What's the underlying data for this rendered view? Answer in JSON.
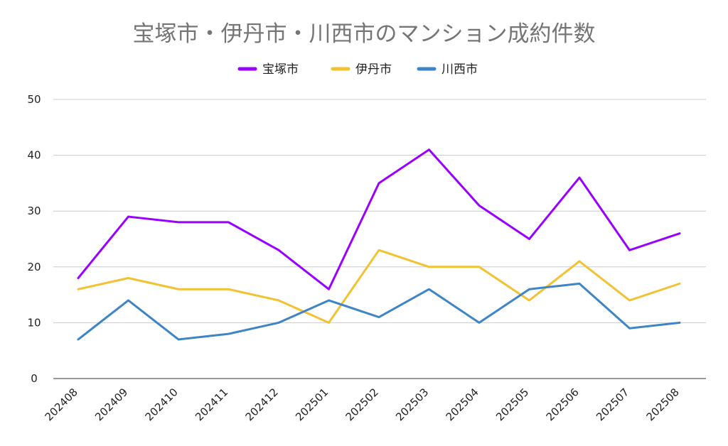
{
  "chart_data": {
    "type": "line",
    "title": "宝塚市・伊丹市・川西市のマンション成約件数",
    "xlabel": "",
    "ylabel": "",
    "categories": [
      "202408",
      "202409",
      "202410",
      "202411",
      "202412",
      "202501",
      "202502",
      "202503",
      "202504",
      "202505",
      "202506",
      "202507",
      "202508"
    ],
    "ylim": [
      0,
      50
    ],
    "yticks": [
      0,
      10,
      20,
      30,
      40,
      50
    ],
    "grid": true,
    "legend_position": "top-center",
    "series": [
      {
        "name": "宝塚市",
        "color": "#9900ff",
        "values": [
          18,
          29,
          28,
          28,
          23,
          16,
          35,
          41,
          31,
          25,
          36,
          23,
          26
        ]
      },
      {
        "name": "伊丹市",
        "color": "#f1c232",
        "values": [
          16,
          18,
          16,
          16,
          14,
          10,
          23,
          20,
          20,
          14,
          21,
          14,
          17
        ]
      },
      {
        "name": "川西市",
        "color": "#3d85c6",
        "values": [
          7,
          14,
          7,
          8,
          10,
          14,
          11,
          16,
          10,
          16,
          17,
          9,
          10
        ]
      }
    ]
  }
}
